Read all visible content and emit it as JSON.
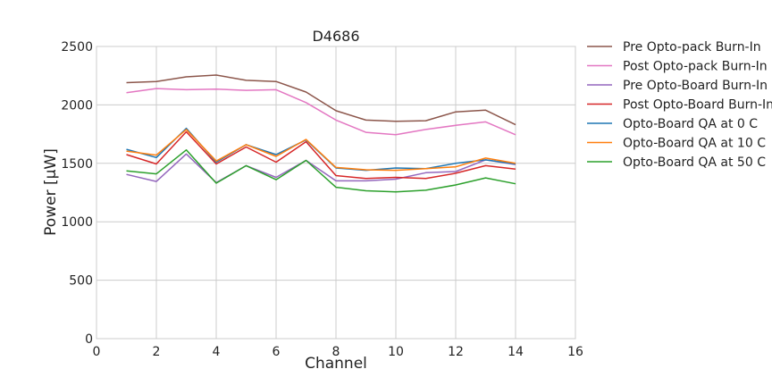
{
  "chart_data": {
    "type": "line",
    "title": "D4686",
    "xlabel": "Channel",
    "ylabel": "Power [μW]",
    "xlim": [
      0,
      16
    ],
    "ylim": [
      0,
      2500
    ],
    "xticks": [
      0,
      2,
      4,
      6,
      8,
      10,
      12,
      14,
      16
    ],
    "yticks": [
      0,
      500,
      1000,
      1500,
      2000,
      2500
    ],
    "grid": true,
    "legend_position": "outside-right",
    "x": [
      1,
      2,
      3,
      4,
      5,
      6,
      7,
      8,
      9,
      10,
      11,
      12,
      13,
      14
    ],
    "series": [
      {
        "name": "Pre Opto-pack Burn-In",
        "color": "#8c564b",
        "values": [
          2190,
          2200,
          2240,
          2255,
          2210,
          2200,
          2110,
          1950,
          1870,
          1860,
          1865,
          1940,
          1955,
          1830
        ]
      },
      {
        "name": "Post Opto-pack Burn-In",
        "color": "#e377c2",
        "values": [
          2105,
          2140,
          2130,
          2135,
          2125,
          2130,
          2020,
          1870,
          1765,
          1745,
          1790,
          1825,
          1855,
          1745
        ]
      },
      {
        "name": "Pre Opto-Board Burn-In",
        "color": "#9467bd",
        "values": [
          1405,
          1345,
          1580,
          1335,
          1480,
          1380,
          1525,
          1350,
          1350,
          1365,
          1420,
          1430,
          1530,
          1490
        ]
      },
      {
        "name": "Post Opto-Board Burn-In",
        "color": "#d62728",
        "values": [
          1575,
          1495,
          1770,
          1495,
          1640,
          1510,
          1685,
          1395,
          1370,
          1380,
          1370,
          1415,
          1480,
          1450
        ]
      },
      {
        "name": "Opto-Board QA at 0 C",
        "color": "#1f77b4",
        "values": [
          1620,
          1550,
          1800,
          1510,
          1660,
          1575,
          1700,
          1460,
          1440,
          1460,
          1455,
          1500,
          1530,
          1495
        ]
      },
      {
        "name": "Opto-Board QA at 10 C",
        "color": "#ff7f0e",
        "values": [
          1605,
          1570,
          1790,
          1520,
          1660,
          1560,
          1705,
          1465,
          1445,
          1440,
          1455,
          1470,
          1545,
          1500
        ]
      },
      {
        "name": "Opto-Board QA at 50 C",
        "color": "#2ca02c",
        "values": [
          1435,
          1410,
          1615,
          1330,
          1480,
          1360,
          1525,
          1295,
          1265,
          1255,
          1270,
          1315,
          1375,
          1325
        ]
      }
    ]
  }
}
